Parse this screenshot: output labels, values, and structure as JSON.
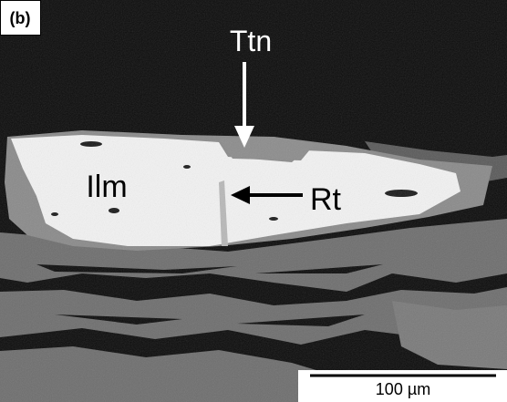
{
  "panel_label": "(b)",
  "labels": {
    "ttn": "Ttn",
    "ilm": "Ilm",
    "rt": "Rt"
  },
  "scale_bar": {
    "label": "100 µm"
  }
}
